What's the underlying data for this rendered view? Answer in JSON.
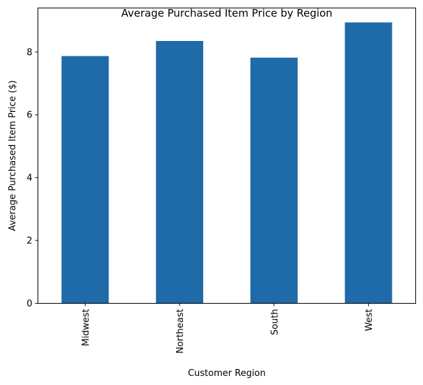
{
  "chart_data": {
    "type": "bar",
    "title": "Average Purchased Item Price by Region",
    "xlabel": "Customer Region",
    "ylabel": "Average Purchased Item Price ($)",
    "categories": [
      "Midwest",
      "Northeast",
      "South",
      "West"
    ],
    "values": [
      7.87,
      8.35,
      7.82,
      8.94
    ],
    "ylim": [
      0,
      9.4
    ],
    "yticks": [
      0,
      2,
      4,
      6,
      8
    ],
    "ytick_labels": [
      "0",
      "2",
      "4",
      "6",
      "8"
    ],
    "bar_color": "#1f6aa9",
    "grid": false,
    "legend": "none"
  }
}
